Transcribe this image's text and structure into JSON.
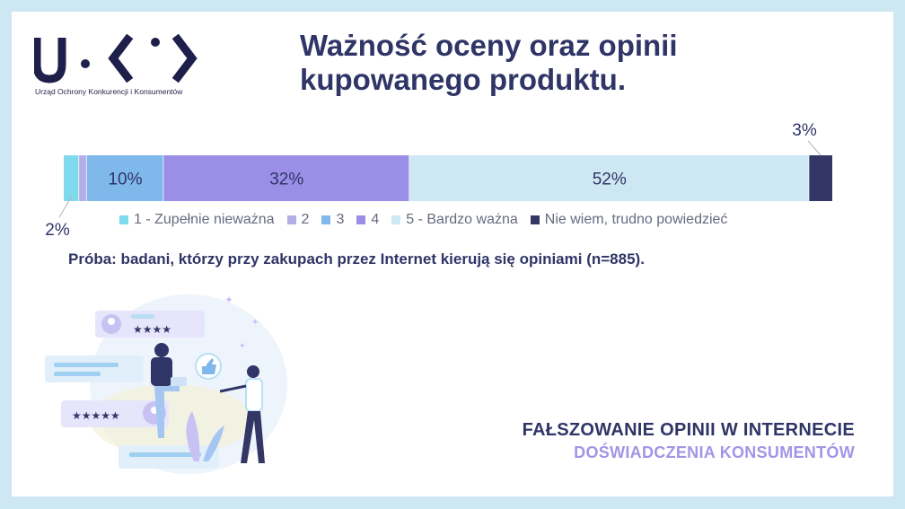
{
  "logo": {
    "tagline": "Urząd Ochrony Konkurencji i Konsumentów",
    "color": "#1e1f4a"
  },
  "title": "Ważność oceny oraz opinii kupowanego produktu.",
  "sample_note": "Próba: badani, którzy przy zakupach przez Internet kierują się opiniami (n=885).",
  "footer": {
    "title": "FAŁSZOWANIE OPINII W INTERNECIE",
    "subtitle": "DOŚWIADCZENIA KONSUMENTÓW"
  },
  "chart_data": {
    "type": "bar",
    "orientation": "horizontal-stacked-100",
    "categories": [
      ""
    ],
    "unit": "%",
    "series": [
      {
        "name": "1 - Zupełnie nieważna",
        "values": [
          2
        ],
        "label": "2%",
        "color": "#7fd9ec"
      },
      {
        "name": "2",
        "values": [
          1
        ],
        "label": "1%",
        "color": "#b3aee8"
      },
      {
        "name": "3",
        "values": [
          10
        ],
        "label": "10%",
        "color": "#7fb8ea"
      },
      {
        "name": "4",
        "values": [
          32
        ],
        "label": "32%",
        "color": "#9b8ee6"
      },
      {
        "name": "5 - Bardzo ważna",
        "values": [
          52
        ],
        "label": "52%",
        "color": "#cde8f2"
      },
      {
        "name": "Nie wiem, trudno powiedzieć",
        "values": [
          3
        ],
        "label": "3%",
        "color": "#343766"
      }
    ],
    "legend_position": "bottom",
    "grid": false
  }
}
